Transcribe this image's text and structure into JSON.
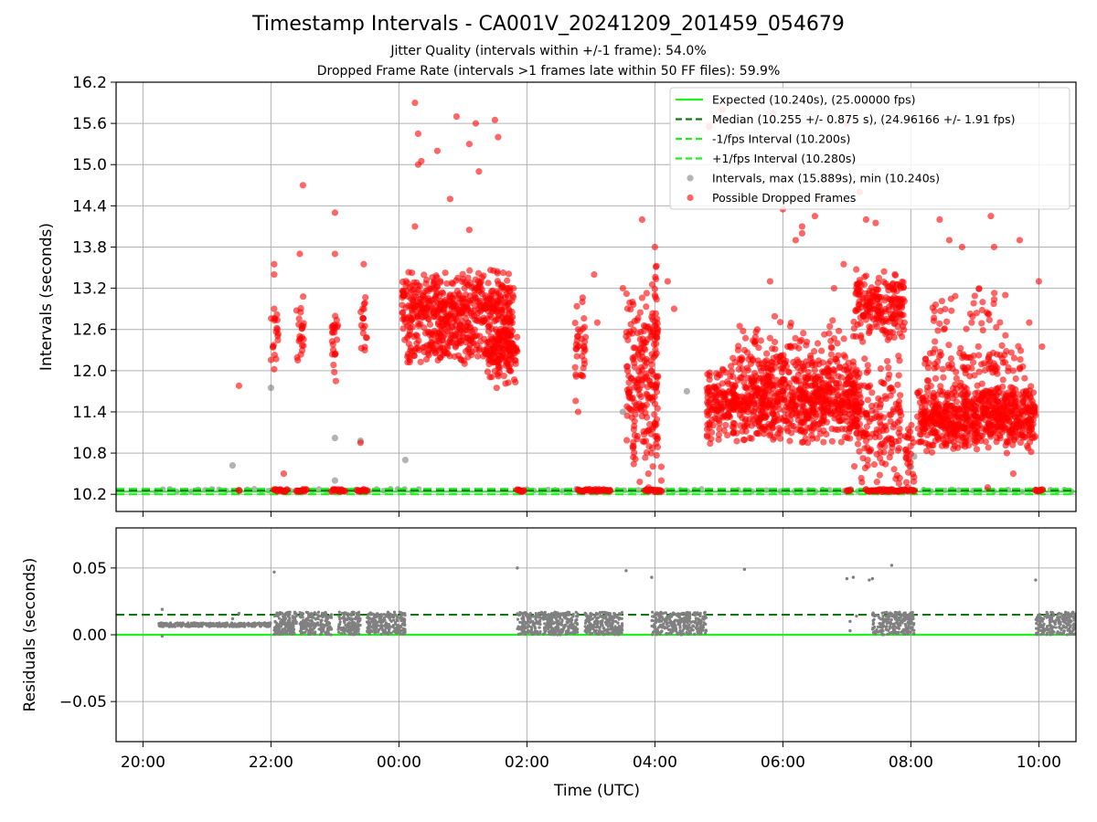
{
  "title": "Timestamp Intervals - CA001V_20241209_201459_054679",
  "subtitle_1": "Jitter Quality (intervals within +/-1 frame): 54.0%",
  "subtitle_2": "Dropped Frame Rate (intervals >1 frames late within 50 FF files): 59.9%",
  "colors": {
    "expected": "#22ee22",
    "median": "#117711",
    "interval_points": "#808080",
    "dropped_points": "#ff0000",
    "grid": "#b0b0b0"
  },
  "chart_data": [
    {
      "type": "scatter",
      "name": "intervals",
      "ylabel": "Intervals (seconds)",
      "xlabel": "",
      "x_unit": "hours (UTC)",
      "xlim": [
        19.58,
        34.58
      ],
      "ylim": [
        9.95,
        16.2
      ],
      "x_ticks": [
        20,
        22,
        24,
        26,
        28,
        30,
        32,
        34
      ],
      "y_ticks": [
        10.2,
        10.8,
        11.4,
        12.0,
        12.6,
        13.2,
        13.8,
        14.4,
        15.0,
        15.6,
        16.2
      ],
      "y_tick_labels": [
        "10.2",
        "10.8",
        "11.4",
        "12.0",
        "12.6",
        "13.2",
        "13.8",
        "14.4",
        "15.0",
        "15.6",
        "16.2"
      ],
      "grid": true,
      "legend_position": "top-right",
      "hlines": [
        {
          "label": "Expected (10.240s), (25.00000 fps)",
          "y": 10.24,
          "style": "solid",
          "color": "#22ee22"
        },
        {
          "label": "Median (10.255 +/- 0.875 s), (24.96166 +/- 1.91 fps)",
          "y": 10.255,
          "style": "dashed",
          "color": "#117711"
        },
        {
          "label": "-1/fps Interval (10.200s)",
          "y": 10.2,
          "style": "dashed",
          "color": "#22ee22"
        },
        {
          "label": "+1/fps Interval (10.280s)",
          "y": 10.28,
          "style": "dashed",
          "color": "#22ee22"
        }
      ],
      "series": [
        {
          "name": "Intervals, max (15.889s), min (10.240s)",
          "kind": "gray",
          "points": [
            [
              21.4,
              10.62
            ],
            [
              22.0,
              11.75
            ],
            [
              23.0,
              11.02
            ],
            [
              23.4,
              10.98
            ],
            [
              23.0,
              10.4
            ],
            [
              24.1,
              10.7
            ],
            [
              27.5,
              11.4
            ],
            [
              28.5,
              11.7
            ],
            [
              32.0,
              10.6
            ],
            [
              32.05,
              10.75
            ]
          ],
          "baseline_ranges": [
            [
              20.2,
              22.0
            ],
            [
              22.2,
              23.0
            ],
            [
              23.1,
              24.4
            ],
            [
              26.0,
              27.0
            ],
            [
              27.3,
              28.9
            ],
            [
              29.3,
              31.2
            ],
            [
              31.5,
              32.1
            ],
            [
              32.2,
              34.58
            ]
          ]
        },
        {
          "name": "Possible Dropped Frames",
          "kind": "red",
          "points": [
            [
              21.5,
              11.78
            ],
            [
              22.05,
              13.55
            ],
            [
              22.05,
              13.4
            ],
            [
              22.05,
              12.9
            ],
            [
              22.1,
              12.6
            ],
            [
              22.5,
              14.7
            ],
            [
              22.45,
              13.7
            ],
            [
              22.45,
              12.5
            ],
            [
              22.2,
              10.5
            ],
            [
              23.0,
              14.3
            ],
            [
              23.0,
              13.7
            ],
            [
              23.45,
              13.55
            ],
            [
              23.4,
              10.95
            ],
            [
              24.25,
              15.9
            ],
            [
              24.3,
              15.45
            ],
            [
              24.3,
              15.0
            ],
            [
              24.6,
              15.2
            ],
            [
              24.9,
              15.7
            ],
            [
              25.2,
              15.6
            ],
            [
              25.1,
              15.3
            ],
            [
              25.25,
              14.9
            ],
            [
              25.5,
              15.65
            ],
            [
              25.55,
              15.4
            ],
            [
              24.8,
              14.5
            ],
            [
              25.1,
              14.05
            ],
            [
              24.25,
              14.1
            ],
            [
              24.35,
              15.05
            ],
            [
              26.8,
              12.6
            ],
            [
              26.9,
              12.1
            ],
            [
              26.8,
              11.4
            ],
            [
              27.05,
              13.4
            ],
            [
              27.1,
              12.7
            ],
            [
              27.5,
              13.2
            ],
            [
              27.8,
              14.2
            ],
            [
              27.65,
              13.0
            ],
            [
              27.55,
              12.5
            ],
            [
              28.0,
              13.8
            ],
            [
              28.2,
              13.3
            ],
            [
              28.3,
              12.9
            ],
            [
              28.1,
              10.6
            ],
            [
              28.0,
              13.1
            ],
            [
              27.9,
              10.3
            ],
            [
              28.1,
              10.4
            ],
            [
              28.85,
              15.55
            ],
            [
              29.05,
              15.8
            ],
            [
              29.85,
              15.75
            ],
            [
              29.8,
              13.3
            ],
            [
              30.0,
              14.35
            ],
            [
              30.2,
              13.9
            ],
            [
              30.3,
              14.1
            ],
            [
              30.5,
              14.25
            ],
            [
              30.8,
              13.2
            ],
            [
              30.95,
              13.55
            ],
            [
              29.3,
              12.3
            ],
            [
              29.5,
              12.1
            ],
            [
              29.6,
              12.6
            ],
            [
              30.3,
              14.0
            ],
            [
              30.6,
              14.5
            ],
            [
              31.0,
              15.6
            ],
            [
              31.2,
              14.6
            ],
            [
              31.1,
              12.5
            ],
            [
              31.3,
              14.2
            ],
            [
              31.45,
              14.15
            ],
            [
              31.5,
              13.35
            ],
            [
              31.9,
              12.7
            ],
            [
              32.45,
              14.2
            ],
            [
              32.6,
              13.9
            ],
            [
              32.8,
              13.8
            ],
            [
              32.95,
              12.7
            ],
            [
              33.25,
              14.25
            ],
            [
              33.3,
              13.8
            ],
            [
              33.7,
              13.9
            ],
            [
              33.85,
              12.7
            ],
            [
              33.6,
              12.0
            ],
            [
              33.5,
              10.8
            ],
            [
              34.0,
              13.3
            ],
            [
              34.05,
              12.35
            ],
            [
              33.2,
              10.3
            ],
            [
              33.6,
              10.5
            ],
            [
              32.05,
              10.45
            ],
            [
              31.95,
              10.3
            ]
          ],
          "dense_clusters": [
            {
              "x": [
                22.0,
                22.12
              ],
              "y": [
                11.9,
                13.0
              ],
              "n": 18
            },
            {
              "x": [
                22.4,
                22.52
              ],
              "y": [
                11.9,
                13.3
              ],
              "n": 22
            },
            {
              "x": [
                22.95,
                23.05
              ],
              "y": [
                11.8,
                13.2
              ],
              "n": 24
            },
            {
              "x": [
                23.4,
                23.5
              ],
              "y": [
                12.2,
                13.1
              ],
              "n": 18
            },
            {
              "x": [
                24.05,
                25.8
              ],
              "y": [
                12.3,
                13.5
              ],
              "n": 520
            },
            {
              "x": [
                24.1,
                25.8
              ],
              "y": [
                12.05,
                12.6
              ],
              "n": 140
            },
            {
              "x": [
                25.35,
                25.85
              ],
              "y": [
                11.7,
                12.8
              ],
              "n": 110
            },
            {
              "x": [
                26.75,
                26.92
              ],
              "y": [
                11.3,
                13.3
              ],
              "n": 34
            },
            {
              "x": [
                27.55,
                27.95
              ],
              "y": [
                10.3,
                13.3
              ],
              "n": 160
            },
            {
              "x": [
                27.95,
                28.05
              ],
              "y": [
                10.3,
                13.7
              ],
              "n": 70
            },
            {
              "x": [
                28.8,
                31.2
              ],
              "y": [
                10.9,
                12.2
              ],
              "n": 820
            },
            {
              "x": [
                29.3,
                31.0
              ],
              "y": [
                11.6,
                12.8
              ],
              "n": 130
            },
            {
              "x": [
                31.1,
                31.9
              ],
              "y": [
                12.4,
                13.5
              ],
              "n": 200
            },
            {
              "x": [
                31.1,
                31.85
              ],
              "y": [
                10.3,
                12.3
              ],
              "n": 170
            },
            {
              "x": [
                31.9,
                32.05
              ],
              "y": [
                10.3,
                11.3
              ],
              "n": 25
            },
            {
              "x": [
                32.1,
                33.95
              ],
              "y": [
                10.8,
                11.85
              ],
              "n": 680
            },
            {
              "x": [
                32.2,
                33.8
              ],
              "y": [
                11.8,
                12.4
              ],
              "n": 90
            },
            {
              "x": [
                32.3,
                33.5
              ],
              "y": [
                12.4,
                13.3
              ],
              "n": 40
            }
          ],
          "baseline_groups": [
            [
              21.5,
              21.5
            ],
            [
              22.05,
              22.25
            ],
            [
              22.4,
              22.55
            ],
            [
              22.95,
              23.15
            ],
            [
              23.35,
              23.5
            ],
            [
              25.85,
              25.95
            ],
            [
              26.8,
              27.3
            ],
            [
              27.85,
              28.1
            ],
            [
              31.0,
              31.05
            ],
            [
              31.3,
              31.95
            ],
            [
              32.0,
              32.05
            ],
            [
              33.95,
              34.05
            ]
          ]
        }
      ]
    },
    {
      "type": "scatter",
      "name": "residuals",
      "xlabel": "Time (UTC)",
      "ylabel": "Residuals (seconds)",
      "x_unit": "hours (UTC)",
      "xlim": [
        19.58,
        34.58
      ],
      "ylim": [
        -0.08,
        0.08
      ],
      "x_ticks": [
        20,
        22,
        24,
        26,
        28,
        30,
        32,
        34
      ],
      "x_tick_labels": [
        "20:00",
        "22:00",
        "00:00",
        "02:00",
        "04:00",
        "06:00",
        "08:00",
        "10:00"
      ],
      "y_ticks": [
        -0.05,
        0.0,
        0.05
      ],
      "y_tick_labels": [
        "−0.05",
        "0.00",
        "0.05"
      ],
      "grid": true,
      "hlines": [
        {
          "y": 0.0,
          "style": "solid",
          "color": "#22ee22"
        },
        {
          "y": 0.015,
          "style": "dashed",
          "color": "#117711"
        }
      ],
      "dense_bands": [
        {
          "x": [
            20.25,
            22.0
          ],
          "y": [
            0.006,
            0.009
          ],
          "n": 300
        },
        {
          "x": [
            22.05,
            22.4
          ],
          "y": [
            0.0,
            0.017
          ],
          "n": 140
        },
        {
          "x": [
            22.45,
            22.95
          ],
          "y": [
            0.0,
            0.017
          ],
          "n": 200
        },
        {
          "x": [
            23.05,
            23.4
          ],
          "y": [
            0.0,
            0.017
          ],
          "n": 150
        },
        {
          "x": [
            23.5,
            24.1
          ],
          "y": [
            0.0,
            0.017
          ],
          "n": 240
        },
        {
          "x": [
            25.85,
            26.8
          ],
          "y": [
            0.0,
            0.017
          ],
          "n": 330
        },
        {
          "x": [
            26.9,
            27.5
          ],
          "y": [
            0.0,
            0.017
          ],
          "n": 240
        },
        {
          "x": [
            27.95,
            28.8
          ],
          "y": [
            0.0,
            0.017
          ],
          "n": 300
        },
        {
          "x": [
            31.4,
            32.05
          ],
          "y": [
            0.0,
            0.017
          ],
          "n": 230
        },
        {
          "x": [
            33.95,
            34.58
          ],
          "y": [
            0.0,
            0.017
          ],
          "n": 220
        }
      ],
      "points": [
        [
          20.3,
          0.019
        ],
        [
          20.3,
          -0.001
        ],
        [
          21.4,
          0.012
        ],
        [
          21.5,
          0.016
        ],
        [
          22.05,
          0.047
        ],
        [
          25.85,
          0.05
        ],
        [
          27.55,
          0.048
        ],
        [
          27.95,
          0.043
        ],
        [
          29.4,
          0.049
        ],
        [
          31.0,
          0.042
        ],
        [
          31.1,
          0.043
        ],
        [
          31.35,
          0.041
        ],
        [
          31.4,
          0.042
        ],
        [
          31.7,
          0.052
        ],
        [
          33.95,
          0.041
        ],
        [
          31.05,
          0.01
        ],
        [
          31.15,
          0.014
        ],
        [
          31.05,
          0.003
        ]
      ]
    }
  ]
}
